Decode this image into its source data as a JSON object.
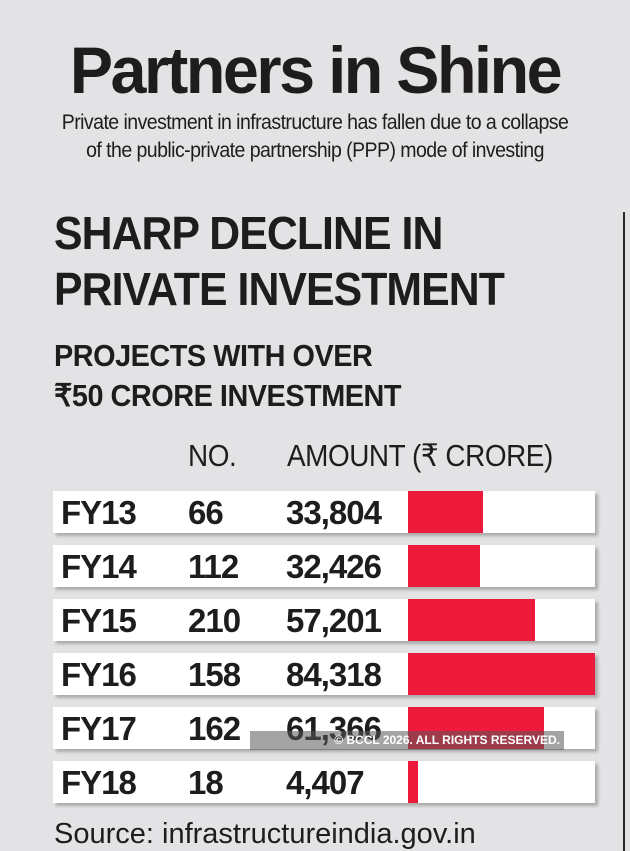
{
  "title": "Partners in Shine",
  "subtitle_lines": [
    "Private investment in infrastructure has fallen due to a collapse",
    "of the public-private partnership (PPP) mode of investing"
  ],
  "headline_lines": [
    "SHARP DECLINE IN",
    "PRIVATE INVESTMENT"
  ],
  "subhead_lines": [
    "PROJECTS WITH OVER",
    "₹50 CRORE INVESTMENT"
  ],
  "watermark": "© BCCL 2026. ALL RIGHTS RESERVED.",
  "source": "Source: infrastructureindia.gov.in",
  "colors": {
    "bar": "#ee1a3b",
    "background": "#e3e3e5",
    "row": "#ffffff"
  },
  "chart_data": {
    "type": "table",
    "columns": [
      "",
      "NO.",
      "AMOUNT (₹ CRORE)"
    ],
    "categories": [
      "FY13",
      "FY14",
      "FY15",
      "FY16",
      "FY17",
      "FY18"
    ],
    "count_labels": [
      "66",
      "112",
      "210",
      "158",
      "162",
      "18"
    ],
    "amount_labels": [
      "33,804",
      "32,426",
      "57,201",
      "84,318",
      "61,366",
      "4,407"
    ],
    "series": [
      {
        "name": "NO.",
        "values": [
          66,
          112,
          210,
          158,
          162,
          18
        ]
      },
      {
        "name": "AMOUNT (₹ CRORE)",
        "values": [
          33804,
          32426,
          57201,
          84318,
          61366,
          4407
        ]
      }
    ],
    "bar_series": "AMOUNT (₹ CRORE)",
    "xlim": [
      0,
      84318
    ]
  }
}
